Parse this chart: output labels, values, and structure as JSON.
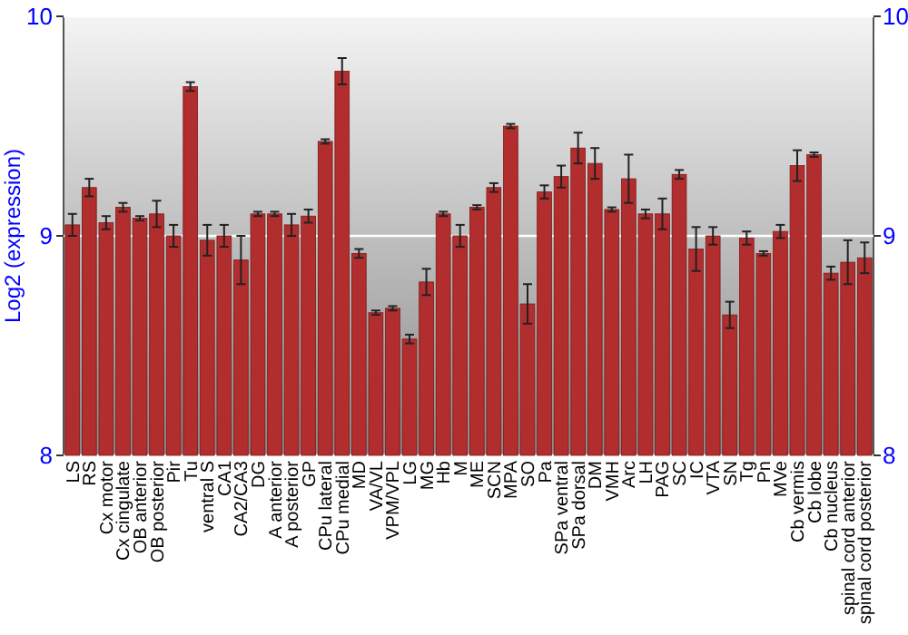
{
  "chart_data": {
    "type": "bar",
    "ylabel": "Log2 (expression)",
    "categories": [
      "LS",
      "RS",
      "Cx motor",
      "Cx cingulate",
      "OB anterior",
      "OB posterior",
      "Pir",
      "Tu",
      "ventral S",
      "CA1",
      "CA2/CA3",
      "DG",
      "A anterior",
      "A posterior",
      "GP",
      "CPu lateral",
      "CPu medial",
      "MD",
      "VA/VL",
      "VPM/VPL",
      "LG",
      "MG",
      "Hb",
      "M",
      "ME",
      "SCN",
      "MPA",
      "SO",
      "Pa",
      "SPa ventral",
      "SPa dorsal",
      "DM",
      "VMH",
      "Arc",
      "LH",
      "PAG",
      "SC",
      "IC",
      "VTA",
      "SN",
      "Tg",
      "Pn",
      "MVe",
      "Cb vermis",
      "Cb lobe",
      "Cb nucleus",
      "spinal cord anterior",
      "spinal cord posterior"
    ],
    "values": [
      9.05,
      9.22,
      9.06,
      9.13,
      9.08,
      9.1,
      9.0,
      9.68,
      8.98,
      9.0,
      8.89,
      9.1,
      9.1,
      9.05,
      9.09,
      9.43,
      9.75,
      8.92,
      8.65,
      8.67,
      8.53,
      8.79,
      9.1,
      9.0,
      9.13,
      9.22,
      9.5,
      8.69,
      9.2,
      9.27,
      9.4,
      9.33,
      9.12,
      9.26,
      9.1,
      9.1,
      9.28,
      8.94,
      9.0,
      8.64,
      8.99,
      8.92,
      9.02,
      9.32,
      9.37,
      8.83,
      8.88,
      8.9
    ],
    "errors": [
      0.05,
      0.04,
      0.03,
      0.02,
      0.01,
      0.06,
      0.05,
      0.02,
      0.07,
      0.05,
      0.11,
      0.01,
      0.01,
      0.05,
      0.03,
      0.01,
      0.06,
      0.02,
      0.01,
      0.01,
      0.02,
      0.06,
      0.01,
      0.05,
      0.01,
      0.02,
      0.01,
      0.09,
      0.03,
      0.05,
      0.07,
      0.07,
      0.01,
      0.11,
      0.02,
      0.07,
      0.02,
      0.1,
      0.04,
      0.06,
      0.03,
      0.01,
      0.03,
      0.07,
      0.01,
      0.03,
      0.1,
      0.07
    ],
    "color": "#b22d2d",
    "ylim": [
      8,
      10
    ],
    "yticks": [
      8,
      9,
      10
    ],
    "y2lim": [
      8,
      10
    ],
    "y2ticks": [
      8,
      9,
      10
    ],
    "grid": "y"
  }
}
